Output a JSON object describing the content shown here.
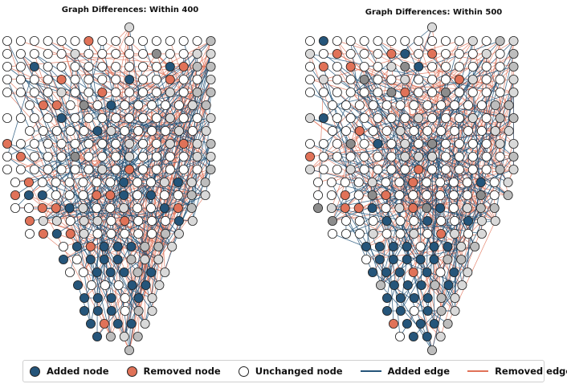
{
  "panels": [
    {
      "title": "Graph Differences: Within 400"
    },
    {
      "title": "Graph Differences: Within 500"
    }
  ],
  "legend": {
    "items": [
      {
        "label": "Added node",
        "kind": "node",
        "fill": "#25557a"
      },
      {
        "label": "Removed node",
        "kind": "node",
        "fill": "#e07258"
      },
      {
        "label": "Unchanged node",
        "kind": "node",
        "fill": "#ffffff"
      },
      {
        "label": "Added edge",
        "kind": "edge",
        "color": "#25557a"
      },
      {
        "label": "Removed edge",
        "kind": "edge",
        "color": "#e07258"
      }
    ]
  },
  "colors": {
    "added": "#25557a",
    "removed": "#e07258",
    "unchanged": "#ffffff",
    "hub_light": "#d9d9d9",
    "hub_mid": "#bdbdbd",
    "hub_dark": "#8c8c8c",
    "node_outline": "#222222"
  }
}
